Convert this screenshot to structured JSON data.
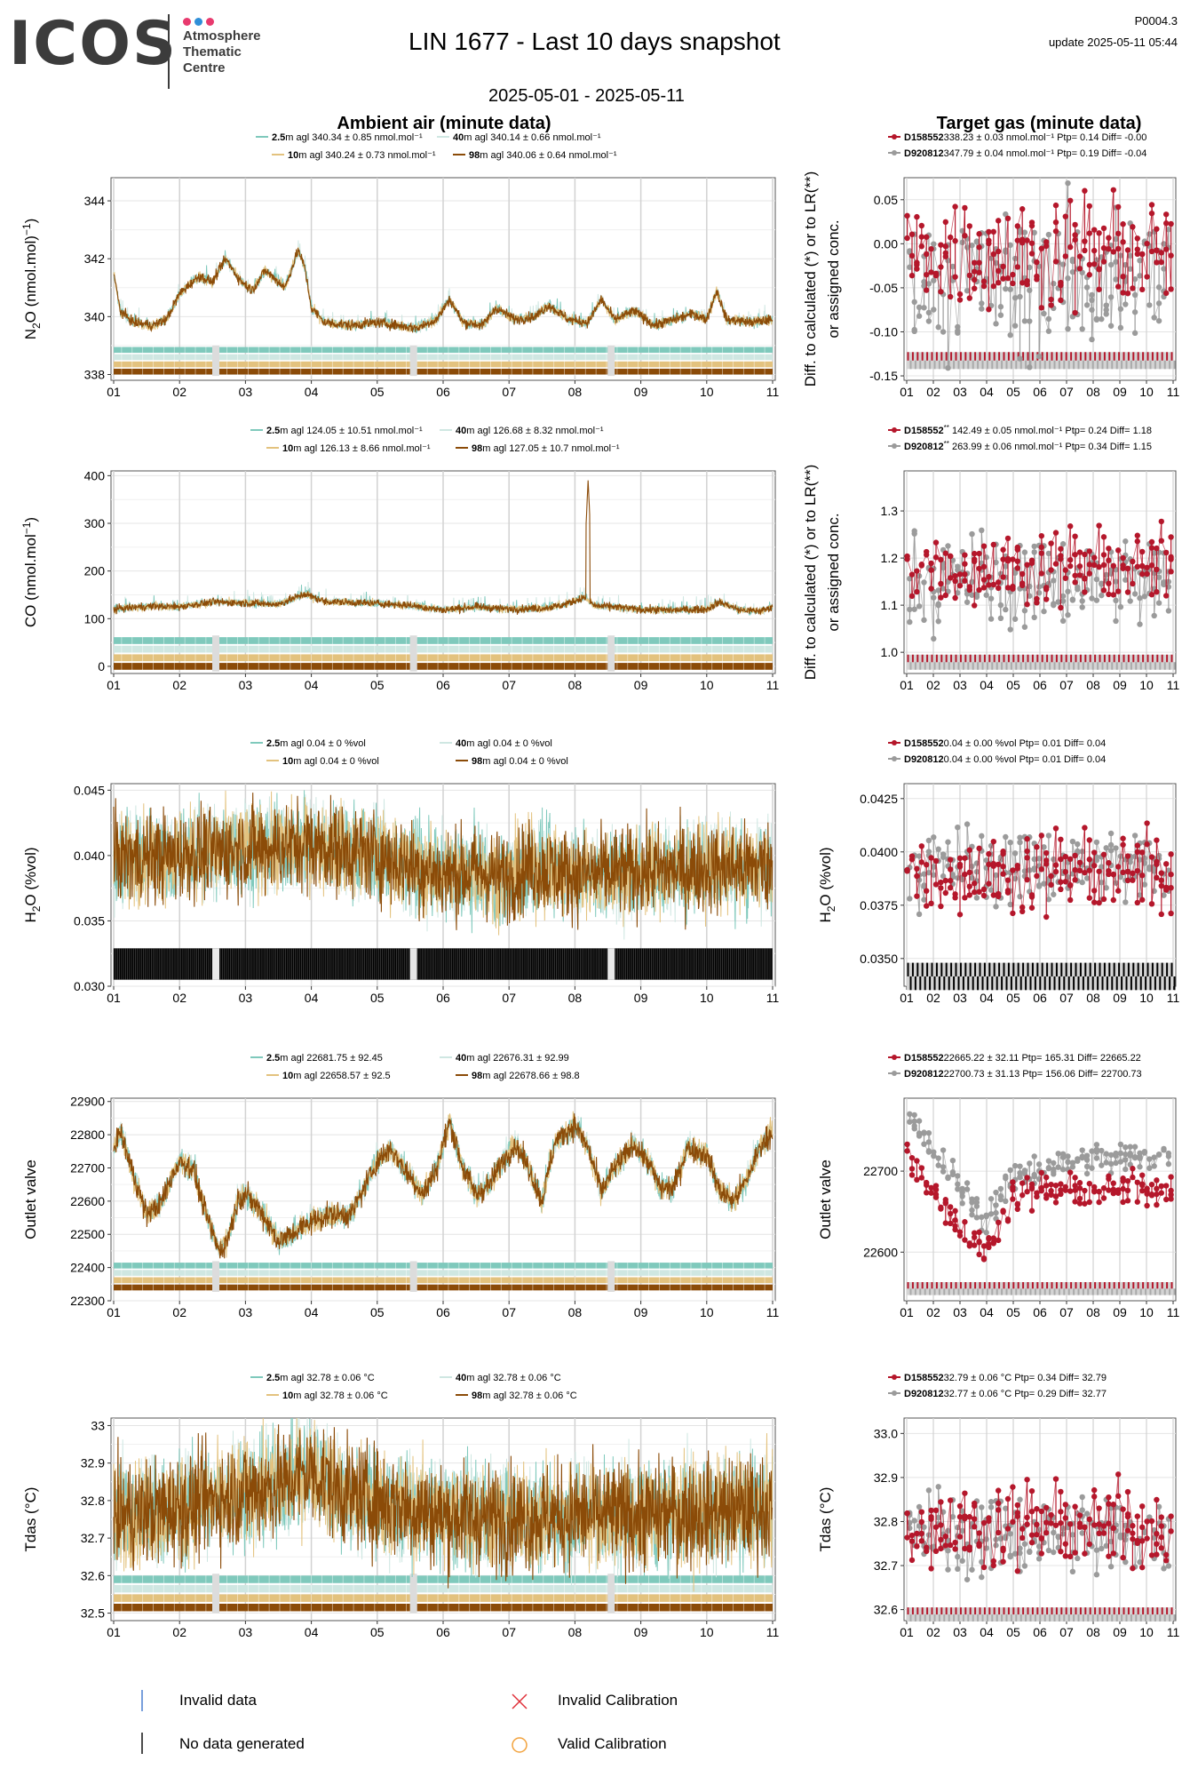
{
  "header": {
    "logo": {
      "word": "ICOS",
      "line1": "Atmosphere",
      "line2": "Thematic",
      "line3": "Centre"
    },
    "title": "LIN 1677 - Last 10 days snapshot",
    "date_range": "2025-05-01 - 2025-05-11",
    "code": "P0004.3",
    "update": "update  2025-05-11 05:44",
    "left_heading": "Ambient air (minute data)",
    "right_heading": "Target gas (minute data)"
  },
  "colors": {
    "h2_5": "#7fc9bc",
    "h40": "#cfe7e2",
    "h10": "#e3c27e",
    "h98": "#8b4b08",
    "target_a": "#b5172b",
    "target_b": "#9b9b9b",
    "invalid_data": "#4a7fd0",
    "no_data": "#111111",
    "invalid_cal": "#e0303a",
    "valid_cal": "#f2a23c"
  },
  "x_ticks": [
    "01",
    "02",
    "03",
    "04",
    "05",
    "06",
    "07",
    "08",
    "09",
    "10",
    "11"
  ],
  "right_ylabel_diff_1": "Diff. to calculated (*) or to LR(**)",
  "right_ylabel_diff_2": "or assigned conc.",
  "legend": {
    "invalid_data": "Invalid data",
    "no_data": "No data generated",
    "invalid_cal": "Invalid Calibration",
    "valid_cal": "Valid Calibration"
  },
  "chart_data": [
    {
      "id": "n2o",
      "type": "line",
      "ylabel": "N2O (nmol.mol-1)",
      "ylim": [
        337.8,
        344.8
      ],
      "yticks": [
        338,
        340,
        342,
        344
      ],
      "series_legend": [
        {
          "height": "2.5",
          "text": "m agl 340.34 ± 0.85 nmol.mol⁻¹"
        },
        {
          "height": "40",
          "text": "m agl 340.14 ± 0.66 nmol.mol⁻¹"
        },
        {
          "height": "10",
          "text": "m agl 340.24 ± 0.73 nmol.mol⁻¹"
        },
        {
          "height": "98",
          "text": "m agl 340.06 ± 0.64 nmol.mol⁻¹"
        }
      ],
      "profile": [
        [
          1.0,
          341.5
        ],
        [
          1.1,
          340.2
        ],
        [
          1.3,
          339.8
        ],
        [
          1.6,
          339.7
        ],
        [
          1.8,
          339.9
        ],
        [
          2.0,
          340.8
        ],
        [
          2.3,
          341.4
        ],
        [
          2.5,
          341.2
        ],
        [
          2.7,
          342.0
        ],
        [
          2.9,
          341.3
        ],
        [
          3.1,
          340.9
        ],
        [
          3.3,
          341.6
        ],
        [
          3.6,
          341.0
        ],
        [
          3.8,
          342.3
        ],
        [
          3.9,
          341.7
        ],
        [
          4.0,
          340.3
        ],
        [
          4.2,
          339.8
        ],
        [
          4.6,
          339.7
        ],
        [
          5.0,
          339.8
        ],
        [
          5.3,
          339.7
        ],
        [
          5.6,
          339.6
        ],
        [
          5.9,
          339.9
        ],
        [
          6.1,
          340.6
        ],
        [
          6.3,
          339.8
        ],
        [
          6.6,
          339.7
        ],
        [
          6.8,
          340.3
        ],
        [
          7.1,
          339.9
        ],
        [
          7.4,
          340.0
        ],
        [
          7.6,
          340.4
        ],
        [
          7.9,
          339.9
        ],
        [
          8.2,
          339.8
        ],
        [
          8.4,
          340.6
        ],
        [
          8.6,
          339.9
        ],
        [
          8.9,
          340.2
        ],
        [
          9.2,
          339.7
        ],
        [
          9.5,
          339.9
        ],
        [
          9.8,
          340.1
        ],
        [
          10.0,
          339.9
        ],
        [
          10.15,
          340.9
        ],
        [
          10.3,
          339.9
        ],
        [
          10.7,
          339.8
        ],
        [
          11.0,
          339.9
        ]
      ],
      "noise": 0.09,
      "flag_base": 338.1,
      "flag_step": 0.25,
      "target": {
        "legend": [
          {
            "name": "D158552",
            "text": "338.23 ± 0.03 nmol.mol⁻¹ Ptp= 0.14 Diff= -0.00"
          },
          {
            "name": "D920812",
            "text": "347.79 ± 0.04 nmol.mol⁻¹ Ptp= 0.19 Diff= -0.04"
          }
        ],
        "ylim": [
          -0.155,
          0.075
        ],
        "yticks": [
          -0.15,
          -0.1,
          -0.05,
          0.0,
          0.05
        ],
        "center_a": -0.01,
        "spread_a": 0.04,
        "center_b": -0.04,
        "spread_b": 0.05,
        "flag_y": -0.135,
        "flag_h": 0.012
      }
    },
    {
      "id": "co",
      "type": "line",
      "ylabel": "CO (nmol.mol-1)",
      "ylim": [
        -15,
        410
      ],
      "yticks": [
        0,
        100,
        200,
        300,
        400
      ],
      "series_legend": [
        {
          "height": "2.5",
          "text": "m agl 124.05 ± 10.51 nmol.mol⁻¹"
        },
        {
          "height": "40",
          "text": "m agl 126.68 ± 8.32 nmol.mol⁻¹"
        },
        {
          "height": "10",
          "text": "m agl 126.13 ± 8.66 nmol.mol⁻¹"
        },
        {
          "height": "98",
          "text": "m agl 127.05 ± 10.7 nmol.mol⁻¹"
        }
      ],
      "profile": [
        [
          1.0,
          120
        ],
        [
          1.5,
          126
        ],
        [
          2.0,
          125
        ],
        [
          2.5,
          135
        ],
        [
          3.0,
          133
        ],
        [
          3.5,
          130
        ],
        [
          3.9,
          152
        ],
        [
          4.2,
          136
        ],
        [
          5.0,
          132
        ],
        [
          5.5,
          128
        ],
        [
          6.0,
          118
        ],
        [
          6.5,
          125
        ],
        [
          7.0,
          120
        ],
        [
          7.5,
          122
        ],
        [
          7.8,
          128
        ],
        [
          8.05,
          140
        ],
        [
          8.15,
          145
        ],
        [
          8.3,
          127
        ],
        [
          8.6,
          125
        ],
        [
          9.0,
          119
        ],
        [
          9.5,
          118
        ],
        [
          10.0,
          120
        ],
        [
          10.2,
          135
        ],
        [
          10.5,
          118
        ],
        [
          10.8,
          116
        ],
        [
          11.0,
          124
        ]
      ],
      "noise": 4,
      "spike": {
        "x": 8.2,
        "y": 390
      },
      "flag_base": 0,
      "flag_step": 18,
      "target": {
        "legend": [
          {
            "name": "D158552",
            "sup": "**",
            "text": "142.49 ± 0.05 nmol.mol⁻¹ Ptp= 0.24 Diff= 1.18"
          },
          {
            "name": "D920812",
            "sup": "**",
            "text": "263.99 ± 0.06 nmol.mol⁻¹ Ptp= 0.34 Diff= 1.15"
          }
        ],
        "ylim": [
          0.955,
          1.385
        ],
        "yticks": [
          1.0,
          1.1,
          1.2,
          1.3
        ],
        "center_a": 1.18,
        "spread_a": 0.05,
        "center_b": 1.15,
        "spread_b": 0.06,
        "flag_y": 0.975,
        "flag_h": 0.02
      }
    },
    {
      "id": "h2o",
      "type": "line",
      "ylabel": "H2O (%vol)",
      "ylim": [
        0.03,
        0.0455
      ],
      "yticks": [
        0.03,
        0.035,
        0.04,
        0.045
      ],
      "ytick_labels": [
        "0.030",
        "0.035",
        "0.040",
        "0.045"
      ],
      "series_legend": [
        {
          "height": "2.5",
          "text": "m agl 0.04 ± 0 %vol"
        },
        {
          "height": "40",
          "text": "m agl 0.04 ± 0 %vol"
        },
        {
          "height": "10",
          "text": "m agl 0.04 ± 0 %vol"
        },
        {
          "height": "98",
          "text": "m agl 0.04 ± 0 %vol"
        }
      ],
      "profile": [
        [
          1.0,
          0.0398
        ],
        [
          2.0,
          0.04
        ],
        [
          3.0,
          0.0405
        ],
        [
          4.0,
          0.0408
        ],
        [
          5.0,
          0.04
        ],
        [
          5.5,
          0.0392
        ],
        [
          6.0,
          0.0385
        ],
        [
          6.5,
          0.0388
        ],
        [
          7.0,
          0.0383
        ],
        [
          7.3,
          0.0392
        ],
        [
          8.0,
          0.0385
        ],
        [
          9.0,
          0.0388
        ],
        [
          10.0,
          0.039
        ],
        [
          11.0,
          0.0392
        ]
      ],
      "noise": 0.0017,
      "flag_base": 0.031,
      "flag_step": 0.0,
      "black_flags": true,
      "target": {
        "legend": [
          {
            "name": "D158552",
            "text": "0.04 ± 0.00 %vol Ptp= 0.01 Diff= 0.04"
          },
          {
            "name": "D920812",
            "text": "0.04 ± 0.00 %vol Ptp= 0.01 Diff= 0.04"
          }
        ],
        "ylim": [
          0.0337,
          0.0432
        ],
        "yticks": [
          0.035,
          0.0375,
          0.04,
          0.0425
        ],
        "ytick_labels": [
          "0.0350",
          "0.0375",
          "0.0400",
          "0.0425"
        ],
        "center_a": 0.039,
        "spread_a": 0.0012,
        "center_b": 0.0393,
        "spread_b": 0.0011,
        "flag_y": 0.034,
        "flag_h": 0.0008,
        "black": true
      }
    },
    {
      "id": "outlet",
      "type": "line",
      "ylabel": "Outlet valve",
      "ylim": [
        22300,
        22910
      ],
      "yticks": [
        22300,
        22400,
        22500,
        22600,
        22700,
        22800,
        22900
      ],
      "series_legend": [
        {
          "height": "2.5",
          "text": "m agl 22681.75 ± 92.45"
        },
        {
          "height": "40",
          "text": "m agl 22676.31 ± 92.99"
        },
        {
          "height": "10",
          "text": "m agl 22658.57 ± 92.5"
        },
        {
          "height": "98",
          "text": "m agl 22678.66 ± 98.8"
        }
      ],
      "profile": [
        [
          1.0,
          22760
        ],
        [
          1.1,
          22810
        ],
        [
          1.3,
          22680
        ],
        [
          1.5,
          22560
        ],
        [
          1.7,
          22590
        ],
        [
          1.9,
          22680
        ],
        [
          2.0,
          22720
        ],
        [
          2.2,
          22700
        ],
        [
          2.4,
          22560
        ],
        [
          2.6,
          22450
        ],
        [
          2.7,
          22470
        ],
        [
          2.9,
          22610
        ],
        [
          3.0,
          22620
        ],
        [
          3.2,
          22580
        ],
        [
          3.5,
          22480
        ],
        [
          3.7,
          22500
        ],
        [
          4.0,
          22540
        ],
        [
          4.3,
          22560
        ],
        [
          4.6,
          22560
        ],
        [
          5.0,
          22720
        ],
        [
          5.2,
          22760
        ],
        [
          5.4,
          22700
        ],
        [
          5.7,
          22620
        ],
        [
          5.9,
          22700
        ],
        [
          6.1,
          22840
        ],
        [
          6.3,
          22700
        ],
        [
          6.5,
          22620
        ],
        [
          6.7,
          22650
        ],
        [
          6.9,
          22720
        ],
        [
          7.1,
          22770
        ],
        [
          7.3,
          22700
        ],
        [
          7.5,
          22600
        ],
        [
          7.7,
          22780
        ],
        [
          8.0,
          22830
        ],
        [
          8.2,
          22760
        ],
        [
          8.4,
          22630
        ],
        [
          8.6,
          22700
        ],
        [
          8.9,
          22770
        ],
        [
          9.1,
          22720
        ],
        [
          9.3,
          22640
        ],
        [
          9.5,
          22640
        ],
        [
          9.7,
          22760
        ],
        [
          10.0,
          22740
        ],
        [
          10.2,
          22630
        ],
        [
          10.4,
          22600
        ],
        [
          10.6,
          22660
        ],
        [
          10.8,
          22760
        ],
        [
          11.0,
          22810
        ]
      ],
      "noise": 18,
      "flag_base": 22340,
      "flag_step": 22,
      "target": {
        "legend": [
          {
            "name": "D158552",
            "text": "22665.22 ± 32.11  Ptp= 165.31 Diff= 22665.22"
          },
          {
            "name": "D920812",
            "text": "22700.73 ± 31.13  Ptp= 156.06 Diff= 22700.73"
          }
        ],
        "ylim": [
          22540,
          22790
        ],
        "yticks": [
          22600,
          22700
        ],
        "ytick_labels": [
          "22600",
          "22700"
        ],
        "center_a": 22665,
        "spread_a": 30,
        "center_b": 22700,
        "spread_b": 28,
        "trend": true,
        "flag_y": 22553,
        "flag_h": 10
      }
    },
    {
      "id": "tdas",
      "type": "line",
      "ylabel": "Tdas (°C)",
      "ylim": [
        32.48,
        33.02
      ],
      "yticks": [
        32.5,
        32.6,
        32.7,
        32.8,
        32.9,
        33.0
      ],
      "series_legend": [
        {
          "height": "2.5",
          "text": "m agl 32.78 ± 0.06 °C"
        },
        {
          "height": "40",
          "text": "m agl 32.78 ± 0.06 °C"
        },
        {
          "height": "10",
          "text": "m agl 32.78 ± 0.06 °C"
        },
        {
          "height": "98",
          "text": "m agl 32.78 ± 0.06 °C"
        }
      ],
      "profile": [
        [
          1.0,
          32.76
        ],
        [
          2.0,
          32.78
        ],
        [
          3.0,
          32.82
        ],
        [
          3.5,
          32.84
        ],
        [
          4.0,
          32.88
        ],
        [
          4.5,
          32.82
        ],
        [
          5.0,
          32.8
        ],
        [
          6.0,
          32.76
        ],
        [
          7.0,
          32.75
        ],
        [
          8.0,
          32.76
        ],
        [
          9.0,
          32.76
        ],
        [
          10.0,
          32.77
        ],
        [
          11.0,
          32.78
        ]
      ],
      "noise": 0.07,
      "flag_base": 32.515,
      "flag_step": 0.025,
      "target": {
        "legend": [
          {
            "name": "D158552",
            "text": "32.79 ± 0.06 °C Ptp= 0.34 Diff= 32.79"
          },
          {
            "name": "D920812",
            "text": "32.77 ± 0.06 °C Ptp= 0.29 Diff= 32.77"
          }
        ],
        "ylim": [
          32.575,
          33.035
        ],
        "yticks": [
          32.6,
          32.7,
          32.8,
          32.9,
          33.0
        ],
        "ytick_labels": [
          "32.6",
          "32.7",
          "32.8",
          "32.9",
          "33.0"
        ],
        "center_a": 32.79,
        "spread_a": 0.06,
        "center_b": 32.77,
        "spread_b": 0.06,
        "flag_y": 32.585,
        "flag_h": 0.02
      }
    }
  ]
}
